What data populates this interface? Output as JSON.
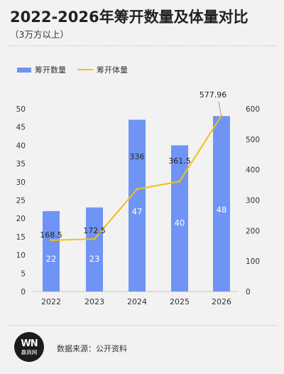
{
  "header": {
    "title": "2022-2026年筹开数量及体量对比",
    "subtitle": "（3万方以上）"
  },
  "legend": {
    "bar_label": "筹开数量",
    "line_label": "筹开体量"
  },
  "footer": {
    "logo_text": "赢商网",
    "source": "数据来源：公开资料"
  },
  "colors": {
    "bar": "#6f94f5",
    "line": "#f2bf19"
  },
  "chart_data": {
    "type": "bar",
    "categories": [
      "2022",
      "2023",
      "2024",
      "2025",
      "2026"
    ],
    "series": [
      {
        "name": "筹开数量",
        "type": "bar",
        "axis": "left",
        "values": [
          22,
          23,
          47,
          40,
          48
        ],
        "labels": [
          "22",
          "23",
          "47",
          "40",
          "48"
        ]
      },
      {
        "name": "筹开体量",
        "type": "line",
        "axis": "right",
        "values": [
          168.5,
          172.5,
          336,
          361.5,
          577.96
        ],
        "labels": [
          "168.5",
          "172.5",
          "336",
          "361.5",
          "577.96"
        ]
      }
    ],
    "y_left": {
      "range": [
        0,
        50
      ],
      "ticks": [
        "0",
        "5",
        "10",
        "15",
        "20",
        "25",
        "30",
        "35",
        "40",
        "45",
        "50"
      ]
    },
    "y_right": {
      "range": [
        0,
        600
      ],
      "ticks": [
        "0",
        "100",
        "200",
        "300",
        "400",
        "500",
        "600"
      ]
    },
    "legend_position": "top-left",
    "grid": false
  }
}
